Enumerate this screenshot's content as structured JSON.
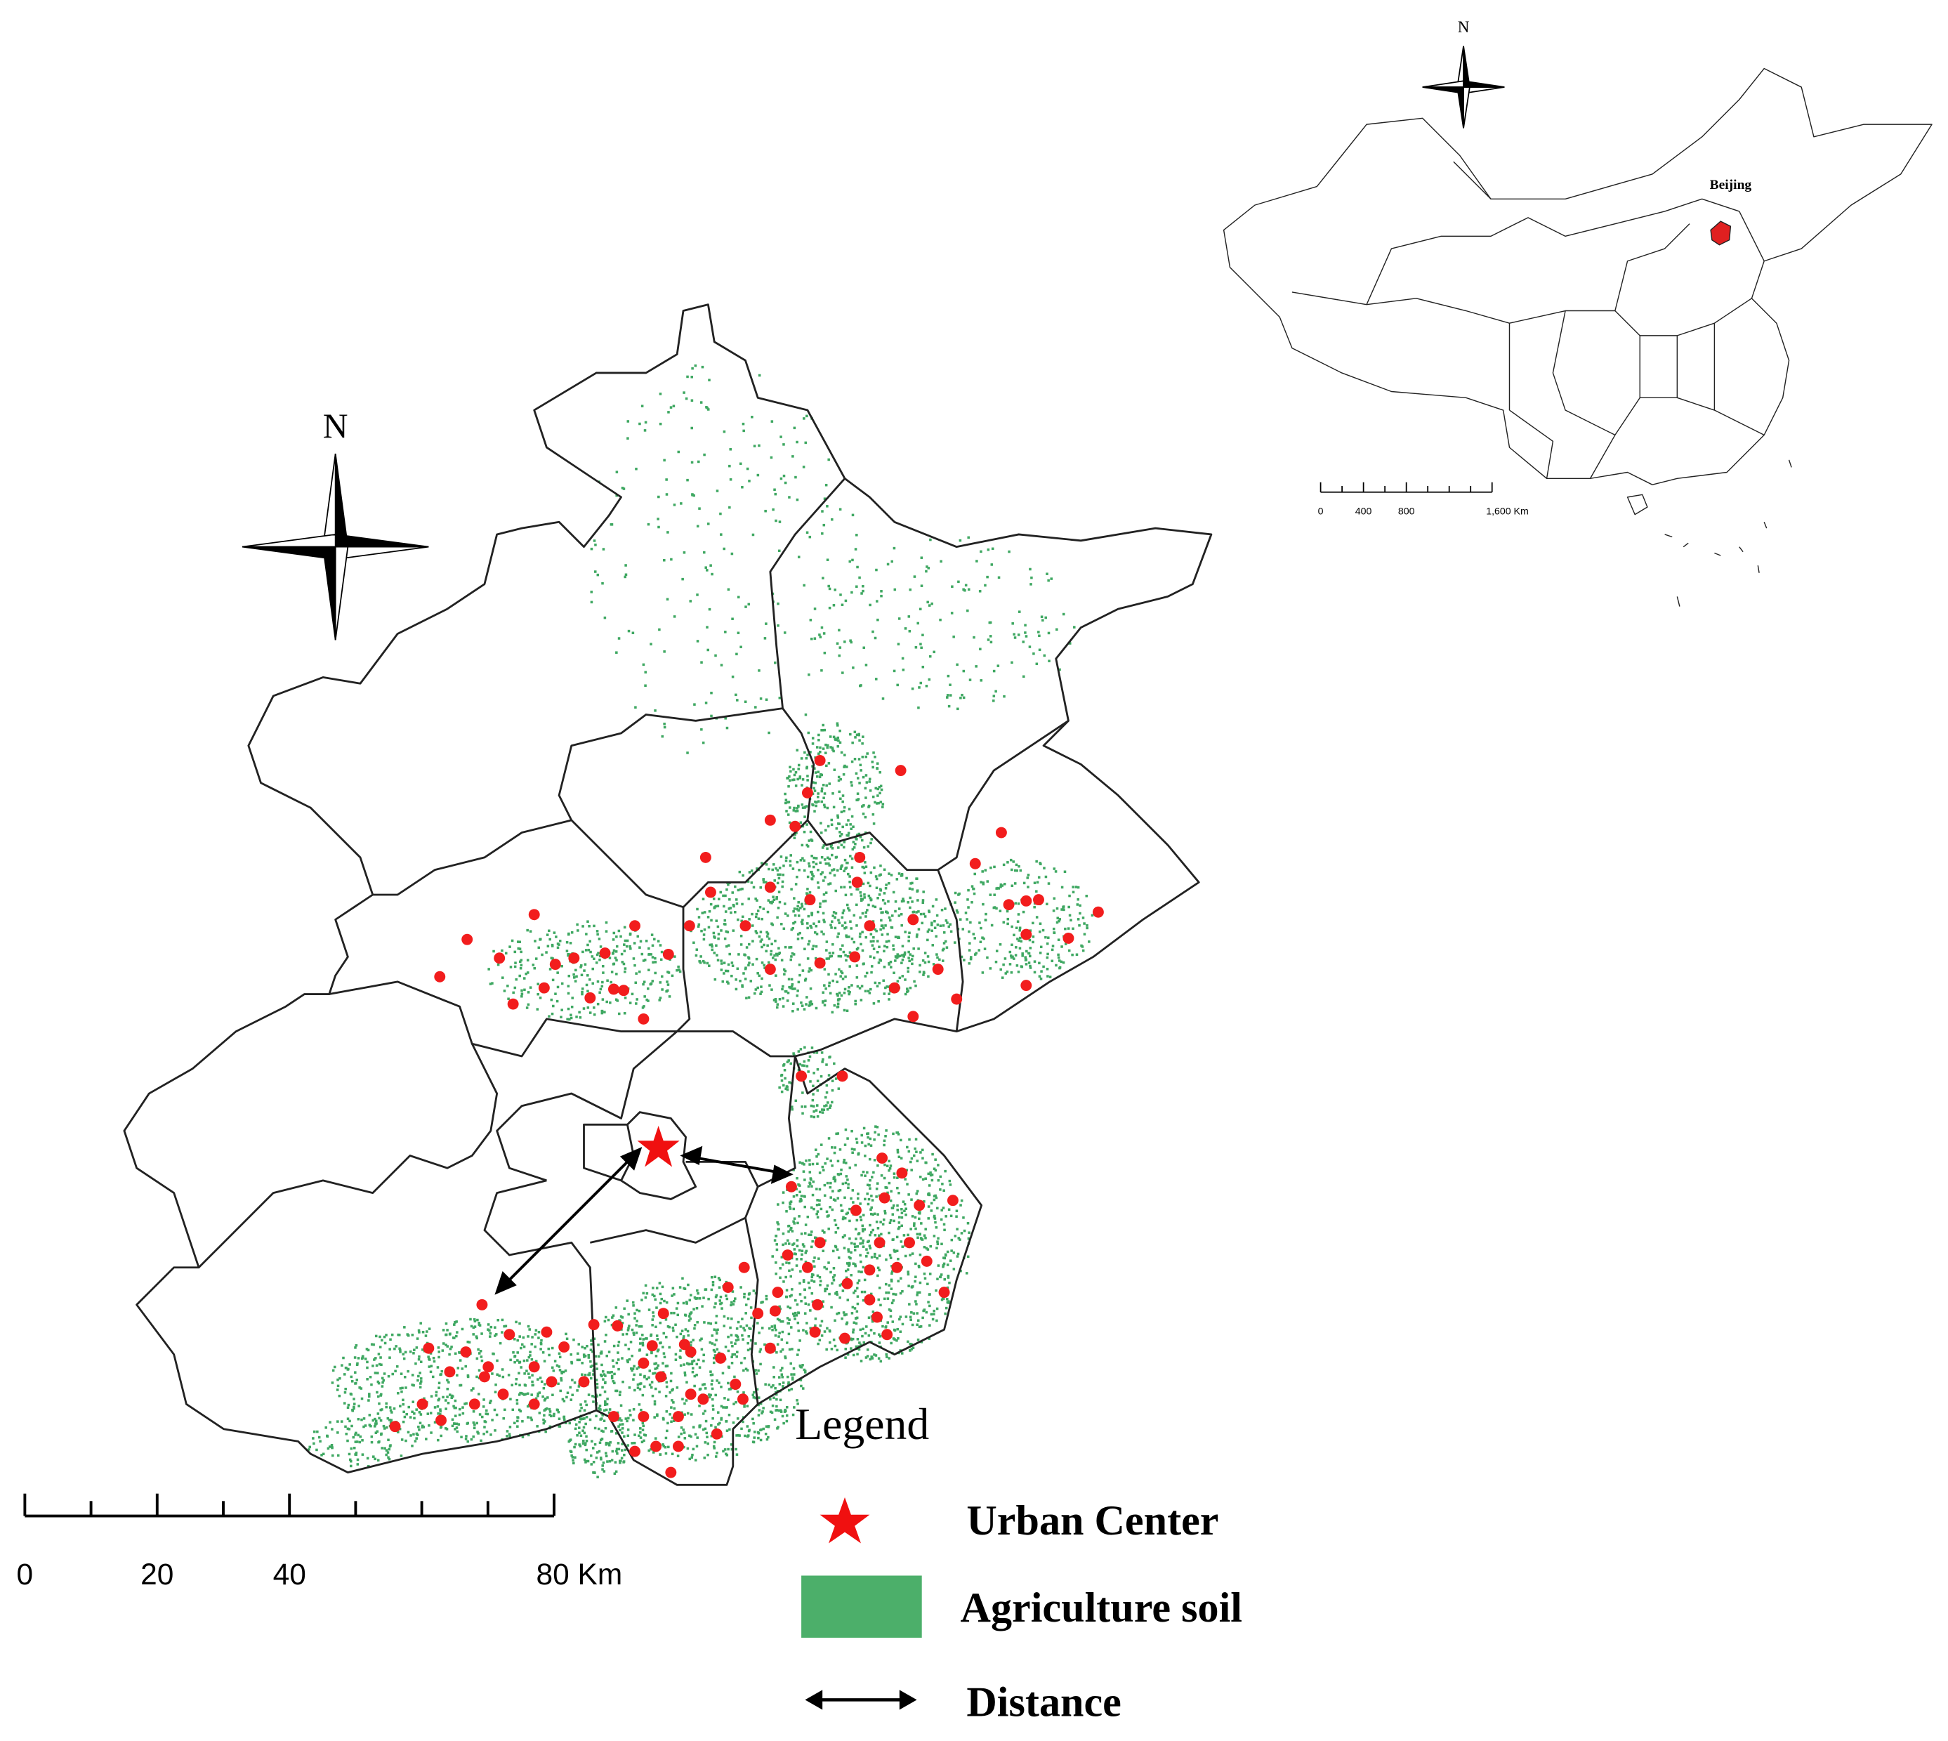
{
  "main_map": {
    "north_label": "N",
    "scale_bar": {
      "range": [
        0,
        80
      ],
      "ticks": [
        0,
        20,
        40,
        {
          "value": 80,
          "label": "80 Km"
        }
      ],
      "minor_ticks": [
        10,
        30,
        50,
        60,
        70
      ]
    }
  },
  "inset_map": {
    "north_label": "N",
    "region_label": "Beijing",
    "scale_bar": {
      "range": [
        0,
        1600
      ],
      "ticks": [
        0,
        400,
        800,
        {
          "value": 1600,
          "label": "1,600 Km"
        }
      ],
      "minor_ticks": [
        200,
        600,
        1000,
        1200,
        1400
      ]
    }
  },
  "legend": {
    "title": "Legend",
    "items": [
      "Urban Center",
      "Agriculture soil",
      "Distance"
    ]
  }
}
